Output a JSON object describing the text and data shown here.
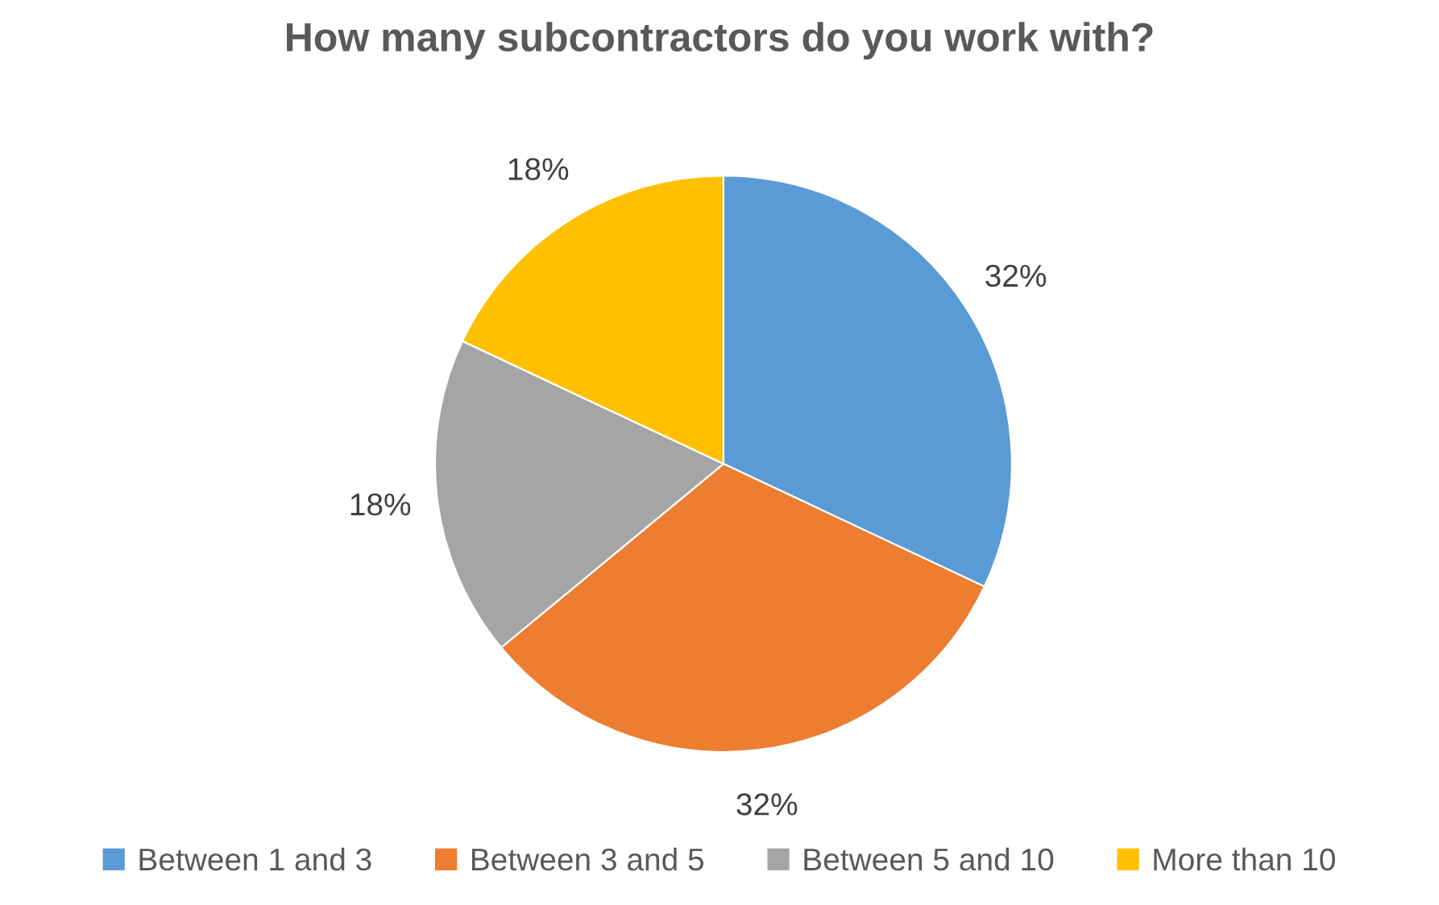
{
  "chart_data": {
    "type": "pie",
    "title": "How many subcontractors do you work with?",
    "categories": [
      "Between 1 and 3",
      "Between 3 and 5",
      "Between 5 and 10",
      "More than 10"
    ],
    "values": [
      32,
      32,
      18,
      18
    ],
    "colors": [
      "#5b9bd5",
      "#ed7d31",
      "#a5a5a5",
      "#ffc000"
    ],
    "value_labels": [
      "32%",
      "32%",
      "18%",
      "18%"
    ],
    "legend": "bottom"
  }
}
